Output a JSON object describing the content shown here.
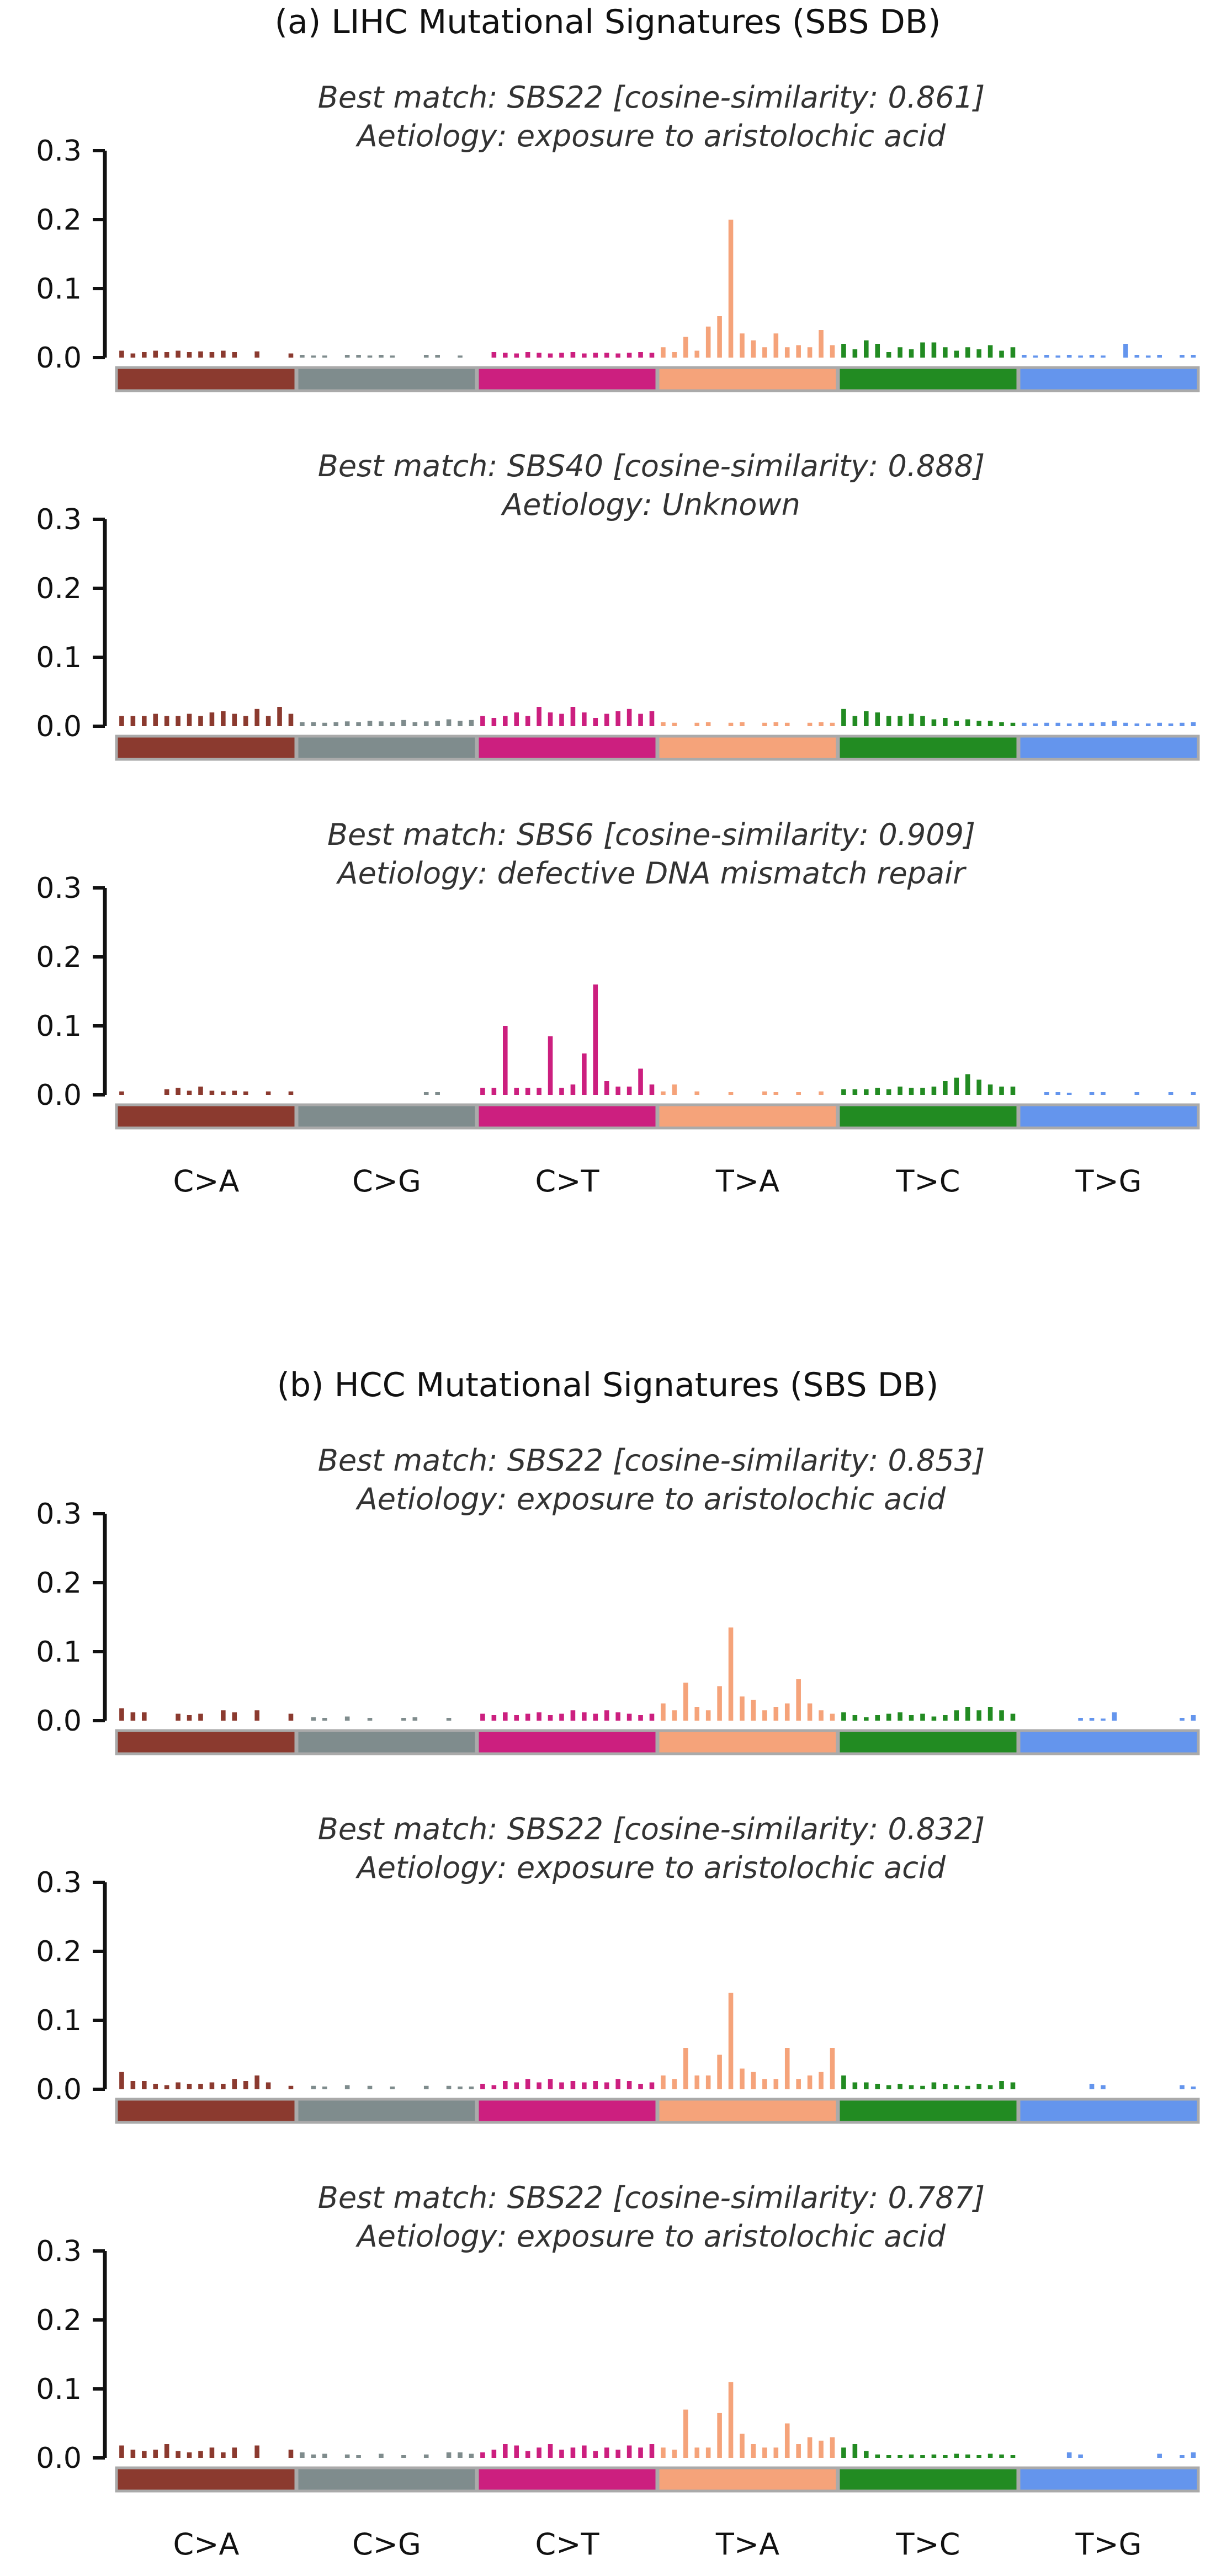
{
  "colors": {
    "C>A": "#8b3a2f",
    "C>G": "#7f8c8d",
    "C>T": "#cc1f7f",
    "T>A": "#f5a37a",
    "T>C": "#228b22",
    "T>G": "#6495ed"
  },
  "chart_data": [
    {
      "type": "bar",
      "title": "(a) LIHC Mutational Signatures (SBS DB)",
      "categories": [
        "C>A",
        "C>G",
        "C>T",
        "T>A",
        "T>C",
        "T>G"
      ],
      "ylim": [
        0,
        0.3
      ],
      "yticks": [
        0.0,
        0.1,
        0.2,
        0.3
      ],
      "subplots": [
        {
          "match": "Best match: SBS22 [cosine-similarity: 0.861]",
          "aetiology": "Aetiology: exposure to aristolochic acid",
          "series": [
            {
              "category": "C>A",
              "values": [
                0.01,
                0.006,
                0.008,
                0.01,
                0.008,
                0.01,
                0.008,
                0.009,
                0.008,
                0.01,
                0.008,
                0,
                0.009,
                0,
                0,
                0.006
              ]
            },
            {
              "category": "C>G",
              "values": [
                0.004,
                0.003,
                0.003,
                0,
                0.004,
                0.004,
                0.003,
                0.004,
                0.003,
                0,
                0,
                0.004,
                0.004,
                0,
                0.003,
                0
              ]
            },
            {
              "category": "C>T",
              "values": [
                0,
                0.008,
                0.007,
                0.006,
                0.008,
                0.007,
                0.006,
                0.007,
                0.008,
                0.006,
                0.007,
                0.007,
                0.006,
                0.007,
                0.008,
                0.007
              ]
            },
            {
              "category": "T>A",
              "values": [
                0.015,
                0.008,
                0.03,
                0.01,
                0.045,
                0.06,
                0.2,
                0.035,
                0.025,
                0.015,
                0.035,
                0.015,
                0.018,
                0.015,
                0.04,
                0.018
              ]
            },
            {
              "category": "T>C",
              "values": [
                0.02,
                0.012,
                0.025,
                0.02,
                0.008,
                0.015,
                0.012,
                0.022,
                0.022,
                0.015,
                0.01,
                0.015,
                0.012,
                0.018,
                0.01,
                0.015
              ]
            },
            {
              "category": "T>G",
              "values": [
                0.004,
                0.003,
                0.004,
                0.003,
                0.004,
                0.003,
                0.004,
                0.003,
                0,
                0.02,
                0.004,
                0.003,
                0.004,
                0,
                0.004,
                0.004
              ]
            }
          ]
        },
        {
          "match": "Best match: SBS40 [cosine-similarity: 0.888]",
          "aetiology": "Aetiology: Unknown",
          "series": [
            {
              "category": "C>A",
              "values": [
                0.015,
                0.015,
                0.015,
                0.018,
                0.015,
                0.015,
                0.018,
                0.015,
                0.02,
                0.022,
                0.018,
                0.015,
                0.025,
                0.015,
                0.028,
                0.018
              ]
            },
            {
              "category": "C>G",
              "values": [
                0.006,
                0.006,
                0.005,
                0.006,
                0.007,
                0.006,
                0.008,
                0.007,
                0.006,
                0.009,
                0.006,
                0.007,
                0.008,
                0.01,
                0.008,
                0.009
              ]
            },
            {
              "category": "C>T",
              "values": [
                0.015,
                0.012,
                0.015,
                0.02,
                0.015,
                0.028,
                0.02,
                0.018,
                0.028,
                0.02,
                0.012,
                0.018,
                0.022,
                0.025,
                0.018,
                0.022
              ]
            },
            {
              "category": "T>A",
              "values": [
                0.006,
                0.005,
                0,
                0.005,
                0.006,
                0,
                0.005,
                0.006,
                0,
                0.005,
                0.006,
                0.005,
                0,
                0.005,
                0.006,
                0.005
              ]
            },
            {
              "category": "T>C",
              "values": [
                0.025,
                0.015,
                0.022,
                0.02,
                0.015,
                0.015,
                0.018,
                0.015,
                0.01,
                0.012,
                0.008,
                0.01,
                0.008,
                0.008,
                0.006,
                0.005
              ]
            },
            {
              "category": "T>G",
              "values": [
                0.005,
                0.004,
                0.005,
                0.005,
                0.004,
                0.005,
                0.005,
                0.006,
                0.008,
                0.005,
                0.004,
                0.004,
                0.005,
                0.004,
                0.005,
                0.006
              ]
            }
          ]
        },
        {
          "match": "Best match: SBS6 [cosine-similarity: 0.909]",
          "aetiology": "Aetiology: defective DNA mismatch repair",
          "series": [
            {
              "category": "C>A",
              "values": [
                0.005,
                0,
                0,
                0,
                0.008,
                0.01,
                0.006,
                0.012,
                0.006,
                0.005,
                0.006,
                0.005,
                0,
                0.005,
                0,
                0.005
              ]
            },
            {
              "category": "C>G",
              "values": [
                0,
                0,
                0,
                0,
                0,
                0,
                0,
                0,
                0,
                0,
                0,
                0.004,
                0.004,
                0,
                0,
                0
              ]
            },
            {
              "category": "C>T",
              "values": [
                0.01,
                0.01,
                0.1,
                0.01,
                0.01,
                0.01,
                0.085,
                0.01,
                0.015,
                0.06,
                0.16,
                0.02,
                0.012,
                0.012,
                0.038,
                0.015
              ]
            },
            {
              "category": "T>A",
              "values": [
                0.005,
                0.015,
                0,
                0.005,
                0,
                0,
                0.004,
                0,
                0,
                0.005,
                0.004,
                0,
                0.004,
                0,
                0.005,
                0
              ]
            },
            {
              "category": "T>C",
              "values": [
                0.008,
                0.008,
                0.008,
                0.01,
                0.008,
                0.012,
                0.01,
                0.01,
                0.012,
                0.02,
                0.025,
                0.03,
                0.022,
                0.015,
                0.012,
                0.012
              ]
            },
            {
              "category": "T>G",
              "values": [
                0,
                0,
                0.004,
                0.004,
                0.003,
                0,
                0.004,
                0.004,
                0,
                0,
                0.004,
                0,
                0,
                0.004,
                0,
                0.004
              ]
            }
          ]
        }
      ]
    },
    {
      "type": "bar",
      "title": "(b) HCC Mutational Signatures (SBS DB)",
      "categories": [
        "C>A",
        "C>G",
        "C>T",
        "T>A",
        "T>C",
        "T>G"
      ],
      "ylim": [
        0,
        0.3
      ],
      "yticks": [
        0.0,
        0.1,
        0.2,
        0.3
      ],
      "subplots": [
        {
          "match": "Best match: SBS22 [cosine-similarity: 0.853]",
          "aetiology": "Aetiology: exposure to aristolochic acid",
          "series": [
            {
              "category": "C>A",
              "values": [
                0.018,
                0.012,
                0.012,
                0,
                0,
                0.01,
                0.008,
                0.01,
                0,
                0.015,
                0.012,
                0,
                0.015,
                0,
                0,
                0.01
              ]
            },
            {
              "category": "C>G",
              "values": [
                0,
                0.005,
                0.004,
                0,
                0.006,
                0,
                0.004,
                0,
                0,
                0.004,
                0.005,
                0,
                0,
                0.004,
                0,
                0
              ]
            },
            {
              "category": "C>T",
              "values": [
                0.01,
                0.008,
                0.012,
                0.008,
                0.01,
                0.012,
                0.008,
                0.01,
                0.015,
                0.012,
                0.01,
                0.015,
                0.012,
                0.01,
                0.008,
                0.01
              ]
            },
            {
              "category": "T>A",
              "values": [
                0.025,
                0.015,
                0.055,
                0.02,
                0.015,
                0.05,
                0.135,
                0.035,
                0.03,
                0.015,
                0.02,
                0.025,
                0.06,
                0.025,
                0.015,
                0.01
              ]
            },
            {
              "category": "T>C",
              "values": [
                0.012,
                0.008,
                0.005,
                0.008,
                0.01,
                0.012,
                0.008,
                0.01,
                0.006,
                0.008,
                0.015,
                0.02,
                0.015,
                0.02,
                0.015,
                0.01
              ]
            },
            {
              "category": "T>G",
              "values": [
                0,
                0,
                0,
                0,
                0,
                0.004,
                0.004,
                0.003,
                0.012,
                0,
                0,
                0,
                0,
                0,
                0.004,
                0.008
              ]
            }
          ]
        },
        {
          "match": "Best match: SBS22 [cosine-similarity: 0.832]",
          "aetiology": "Aetiology: exposure to aristolochic acid",
          "series": [
            {
              "category": "C>A",
              "values": [
                0.025,
                0.012,
                0.012,
                0.008,
                0.006,
                0.01,
                0.008,
                0.008,
                0.01,
                0.008,
                0.015,
                0.012,
                0.02,
                0.01,
                0,
                0.005
              ]
            },
            {
              "category": "C>G",
              "values": [
                0,
                0.005,
                0.004,
                0,
                0.006,
                0,
                0.005,
                0,
                0.004,
                0,
                0,
                0.005,
                0,
                0.005,
                0.004,
                0.004
              ]
            },
            {
              "category": "C>T",
              "values": [
                0.008,
                0.006,
                0.012,
                0.01,
                0.015,
                0.01,
                0.015,
                0.01,
                0.012,
                0.01,
                0.012,
                0.01,
                0.015,
                0.012,
                0.008,
                0.01
              ]
            },
            {
              "category": "T>A",
              "values": [
                0.02,
                0.015,
                0.06,
                0.02,
                0.02,
                0.05,
                0.14,
                0.03,
                0.025,
                0.015,
                0.015,
                0.06,
                0.015,
                0.02,
                0.025,
                0.06
              ]
            },
            {
              "category": "T>C",
              "values": [
                0.02,
                0.01,
                0.01,
                0.008,
                0.006,
                0.008,
                0.006,
                0.005,
                0.01,
                0.008,
                0.006,
                0.005,
                0.008,
                0.006,
                0.012,
                0.01
              ]
            },
            {
              "category": "T>G",
              "values": [
                0,
                0,
                0,
                0,
                0,
                0,
                0.008,
                0.006,
                0,
                0,
                0,
                0,
                0,
                0,
                0.006,
                0.004
              ]
            }
          ]
        },
        {
          "match": "Best match: SBS22 [cosine-similarity: 0.787]",
          "aetiology": "Aetiology: exposure to aristolochic acid",
          "series": [
            {
              "category": "C>A",
              "values": [
                0.018,
                0.012,
                0.01,
                0.012,
                0.02,
                0.01,
                0.008,
                0.01,
                0.015,
                0.008,
                0.015,
                0,
                0.018,
                0,
                0,
                0.012
              ]
            },
            {
              "category": "C>G",
              "values": [
                0.008,
                0.005,
                0.006,
                0,
                0.005,
                0.004,
                0,
                0.006,
                0,
                0.004,
                0,
                0.005,
                0,
                0.008,
                0.008,
                0.006
              ]
            },
            {
              "category": "C>T",
              "values": [
                0.008,
                0.012,
                0.02,
                0.018,
                0.01,
                0.015,
                0.02,
                0.012,
                0.015,
                0.018,
                0.01,
                0.015,
                0.012,
                0.018,
                0.015,
                0.02
              ]
            },
            {
              "category": "T>A",
              "values": [
                0.015,
                0.012,
                0.07,
                0.015,
                0.015,
                0.065,
                0.11,
                0.035,
                0.02,
                0.015,
                0.015,
                0.05,
                0.02,
                0.03,
                0.025,
                0.03
              ]
            },
            {
              "category": "T>C",
              "values": [
                0.015,
                0.02,
                0.01,
                0.005,
                0.004,
                0.004,
                0.005,
                0.004,
                0.005,
                0.004,
                0.006,
                0.005,
                0.004,
                0.006,
                0.005,
                0.004
              ]
            },
            {
              "category": "T>G",
              "values": [
                0,
                0,
                0,
                0,
                0.008,
                0.005,
                0,
                0,
                0,
                0,
                0,
                0,
                0.006,
                0,
                0.004,
                0.008
              ]
            }
          ]
        }
      ]
    }
  ]
}
